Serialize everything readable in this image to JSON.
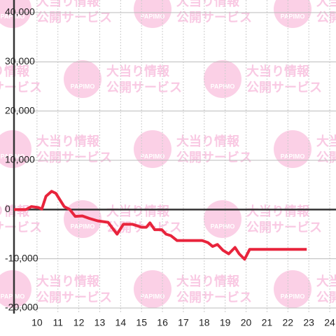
{
  "chart_data": {
    "type": "line",
    "watermark": [
      "大当り情報",
      "公開サービス",
      "PAPIMO"
    ],
    "x": [
      8.9,
      9.47,
      9.73,
      10.07,
      10.23,
      10.43,
      10.7,
      10.9,
      11.3,
      11.57,
      11.83,
      12.17,
      12.5,
      12.9,
      13.4,
      13.83,
      14.13,
      14.57,
      15.0,
      15.23,
      15.4,
      15.63,
      15.97,
      16.17,
      16.4,
      16.7,
      17.9,
      18.17,
      18.4,
      18.63,
      18.9,
      19.17,
      19.47,
      19.67,
      19.93,
      20.17,
      22.9
    ],
    "series": [
      {
        "color": "#e8243c",
        "values": [
          0,
          0,
          600,
          400,
          100,
          2700,
          3700,
          3300,
          600,
          0,
          -1400,
          -1300,
          -1800,
          -2300,
          -2600,
          -5000,
          -3000,
          -3000,
          -3600,
          -3600,
          -2700,
          -4100,
          -4100,
          -5000,
          -5300,
          -6300,
          -6300,
          -6700,
          -7500,
          -7100,
          -8300,
          -9000,
          -7700,
          -9000,
          -10100,
          -8100,
          -8100
        ]
      }
    ],
    "xlim": [
      8.9,
      24.3
    ],
    "xticks": [
      10,
      11,
      12,
      13,
      14,
      15,
      16,
      17,
      18,
      19,
      20,
      21,
      22,
      23,
      24
    ],
    "ylim": [
      -20000,
      40000
    ],
    "yticks": [
      {
        "value": -20000,
        "label": "-20,000"
      },
      {
        "value": -10000,
        "label": "-10,000"
      },
      0,
      {
        "value": 10000,
        "label": "10,000"
      },
      {
        "value": 20000,
        "label": "20,000"
      },
      {
        "value": 30000,
        "label": "30,000"
      },
      {
        "value": 40000,
        "label": "40,000"
      }
    ],
    "grid": true
  }
}
